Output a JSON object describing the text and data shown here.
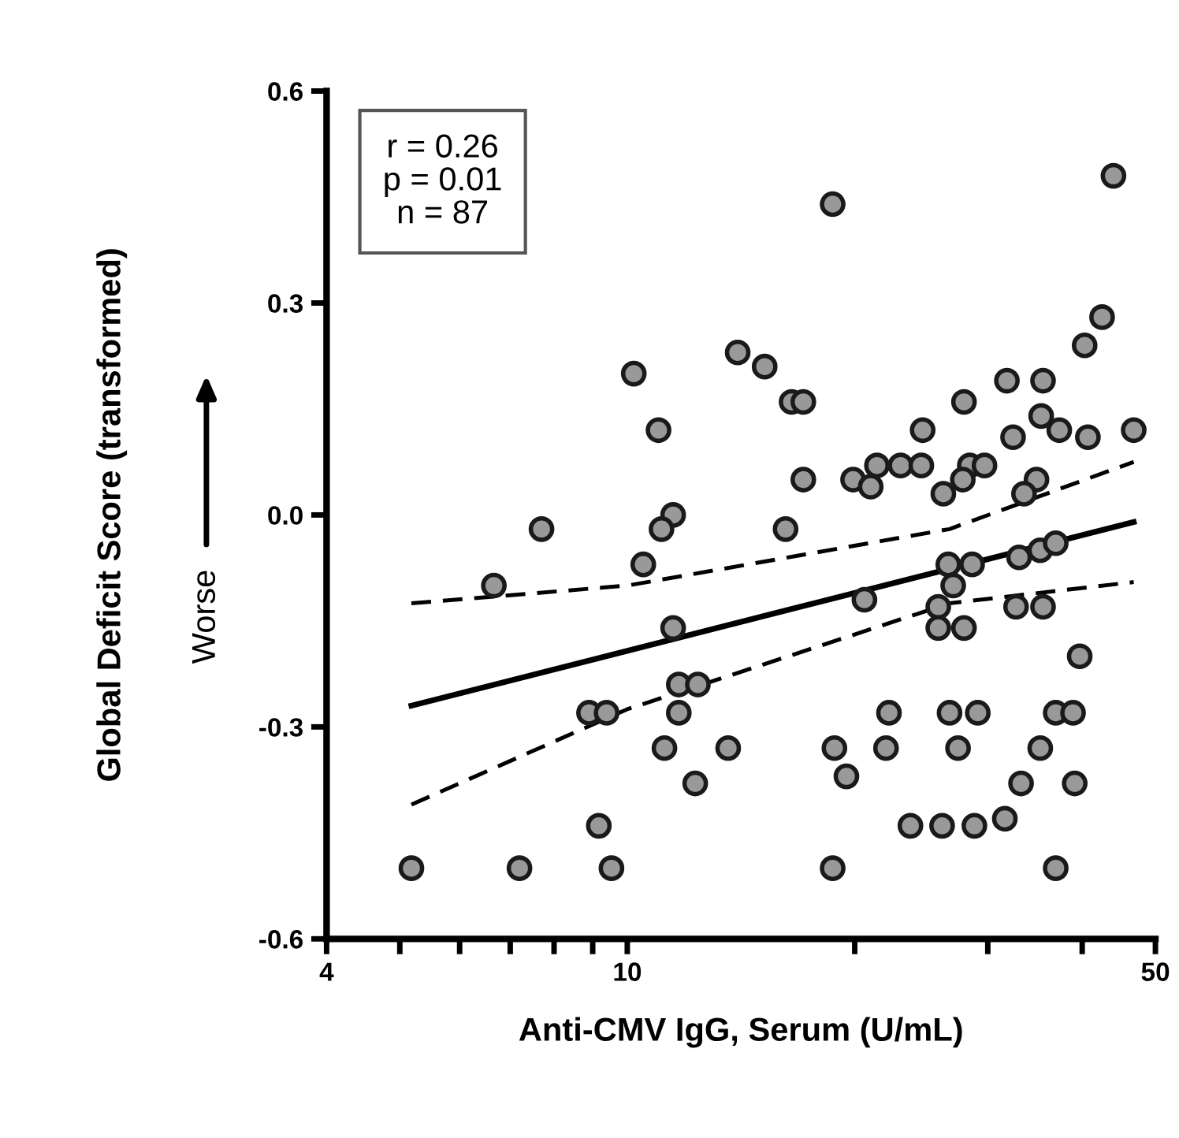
{
  "chart_data": {
    "type": "scatter",
    "xlabel": "Anti-CMV IgG, Serum (U/mL)",
    "ylabel": "Global Deficit Score (transformed)",
    "annotations": [
      "r = 0.26\np = 0.01\nn = 87",
      "Worse"
    ],
    "log": "x",
    "xlim": [
      4,
      50
    ],
    "ylim": [
      -0.6,
      0.6
    ],
    "xticks": [
      4,
      {
        "value": 5,
        "label": null
      },
      {
        "value": 6,
        "label": null
      },
      {
        "value": 7,
        "label": null
      },
      {
        "value": 8,
        "label": null
      },
      {
        "value": 9,
        "label": null
      },
      10,
      {
        "value": 20,
        "label": null
      },
      {
        "value": 30,
        "label": null
      },
      {
        "value": 40,
        "label": null
      },
      50
    ],
    "yticks": [
      -0.6,
      -0.3,
      {
        "value": 0,
        "label": "0.0"
      },
      0.3,
      0.6
    ],
    "grid": false,
    "legend": false,
    "marker": "circle",
    "series": [
      {
        "color": "#999999",
        "x": [
          7.7,
          11.5,
          11.1,
          10.5,
          6.66,
          11.5,
          11.7,
          12.4,
          8.9,
          9.39,
          11.7,
          11.2,
          13.6,
          12.3,
          9.17,
          5.18,
          7.2,
          9.53,
          10.2,
          11.0,
          14.0,
          18.7,
          44.0,
          15.2,
          16.5,
          17.1,
          42.5,
          40.3,
          31.8,
          35.5,
          27.9,
          24.6,
          35.3,
          37.3,
          40.7,
          46.8,
          32.4,
          17.1,
          19.9,
          21.0,
          21.4,
          23.0,
          24.5,
          28.4,
          29.7,
          27.8,
          26.2,
          34.8,
          33.5,
          16.2,
          20.6,
          26.6,
          28.6,
          27.0,
          33.0,
          35.2,
          36.9,
          25.8,
          32.7,
          35.5,
          25.8,
          27.9,
          39.7,
          22.2,
          26.7,
          29.1,
          36.9,
          38.9,
          18.8,
          22.0,
          27.4,
          35.2,
          19.5,
          33.2,
          39.1,
          23.7,
          26.1,
          28.8,
          31.6,
          18.7,
          36.9
        ],
        "values": [
          -0.02,
          0.0,
          -0.02,
          -0.07,
          -0.1,
          -0.16,
          -0.24,
          -0.24,
          -0.28,
          -0.28,
          -0.28,
          -0.33,
          -0.33,
          -0.38,
          -0.44,
          -0.5,
          -0.5,
          -0.5,
          0.2,
          0.12,
          0.23,
          0.44,
          0.48,
          0.21,
          0.16,
          0.16,
          0.28,
          0.24,
          0.19,
          0.19,
          0.16,
          0.12,
          0.14,
          0.12,
          0.11,
          0.12,
          0.11,
          0.05,
          0.05,
          0.04,
          0.07,
          0.07,
          0.07,
          0.07,
          0.07,
          0.05,
          0.03,
          0.05,
          0.03,
          -0.02,
          -0.12,
          -0.07,
          -0.07,
          -0.1,
          -0.06,
          -0.05,
          -0.04,
          -0.13,
          -0.13,
          -0.13,
          -0.16,
          -0.16,
          -0.2,
          -0.28,
          -0.28,
          -0.28,
          -0.28,
          -0.28,
          -0.33,
          -0.33,
          -0.33,
          -0.33,
          -0.37,
          -0.38,
          -0.38,
          -0.44,
          -0.44,
          -0.44,
          -0.43,
          -0.5,
          -0.5
        ]
      },
      {
        "type": "line",
        "color": "#000000",
        "line_style": "solid",
        "marker": "none",
        "x": [
          5.18,
          46.8
        ],
        "values": [
          -0.27,
          -0.01
        ]
      },
      {
        "type": "line",
        "color": "#000000",
        "line_style": "dashed",
        "marker": "none",
        "x": [
          5.18,
          10,
          26.7,
          46.8
        ],
        "values": [
          -0.125,
          -0.1,
          -0.02,
          0.075
        ]
      },
      {
        "type": "line",
        "color": "#000000",
        "line_style": "dashed",
        "marker": "none",
        "x": [
          5.18,
          10,
          26.7,
          46.8
        ],
        "values": [
          -0.41,
          -0.275,
          -0.125,
          -0.095
        ]
      }
    ]
  }
}
